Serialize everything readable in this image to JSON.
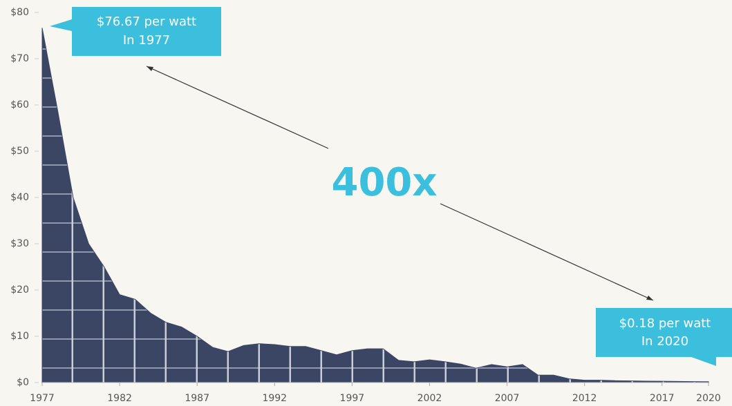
{
  "chart_data": {
    "type": "area",
    "x": [
      1977,
      1978,
      1979,
      1980,
      1981,
      1982,
      1983,
      1984,
      1985,
      1986,
      1987,
      1988,
      1989,
      1990,
      1991,
      1992,
      1993,
      1994,
      1995,
      1996,
      1997,
      1998,
      1999,
      2000,
      2001,
      2002,
      2003,
      2004,
      2005,
      2006,
      2007,
      2008,
      2009,
      2010,
      2011,
      2012,
      2013,
      2014,
      2015,
      2016,
      2017,
      2018,
      2019,
      2020
    ],
    "values": [
      76.67,
      58.8,
      40,
      30,
      25,
      19,
      18,
      15,
      13,
      12,
      10,
      7.6,
      6.7,
      8,
      8.4,
      8.2,
      7.8,
      7.8,
      6.9,
      6,
      6.9,
      7.3,
      7.3,
      4.8,
      4.5,
      4.9,
      4.5,
      4,
      3.1,
      3.9,
      3.4,
      3.9,
      1.6,
      1.6,
      0.8,
      0.5,
      0.5,
      0.4,
      0.35,
      0.3,
      0.28,
      0.25,
      0.2,
      0.18
    ],
    "color": "#3b4664",
    "xlim": [
      1977,
      2020
    ],
    "xticks": [
      1977,
      1982,
      1987,
      1992,
      1997,
      2002,
      2007,
      2012,
      2017,
      2020
    ],
    "ylim": [
      0,
      80
    ],
    "yticks": [
      {
        "value": 0,
        "label": "$0"
      },
      {
        "value": 10,
        "label": "$10"
      },
      {
        "value": 20,
        "label": "$20"
      },
      {
        "value": 30,
        "label": "$30"
      },
      {
        "value": 40,
        "label": "$40"
      },
      {
        "value": 50,
        "label": "$50"
      },
      {
        "value": 60,
        "label": "$60"
      },
      {
        "value": 70,
        "label": "$70"
      },
      {
        "value": 80,
        "label": "$80"
      }
    ],
    "annotations": [
      {
        "lines": [
          "$76.67 per watt",
          "In 1977"
        ]
      },
      {
        "lines": [
          "$0.18 per watt",
          "In 2020"
        ]
      },
      {
        "text": "400x"
      }
    ]
  }
}
